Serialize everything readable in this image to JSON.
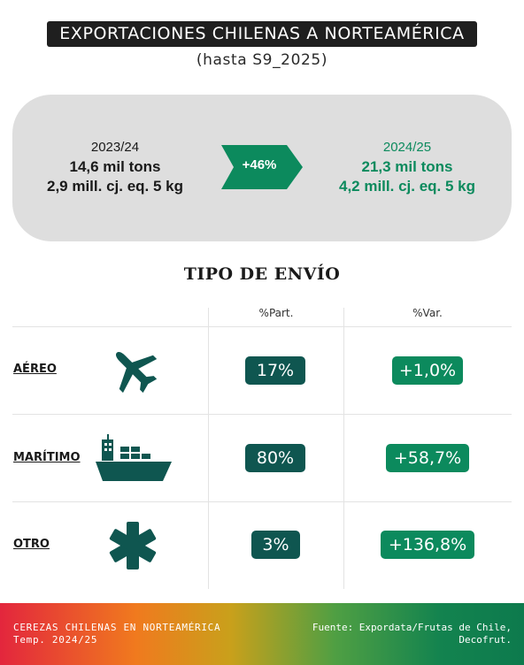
{
  "header": {
    "title": "EXPORTACIONES CHILENAS A NORTEAMÉRICA",
    "subtitle": "(hasta S9_2025)"
  },
  "summary": {
    "previous": {
      "season": "2023/24",
      "tons": "14,6 mil tons",
      "boxes": "2,9 mill. cj. eq. 5 kg"
    },
    "change": "+46%",
    "current": {
      "season": "2024/25",
      "tons": "21,3 mil tons",
      "boxes": "4,2 mill. cj. eq. 5 kg"
    }
  },
  "shipping": {
    "title": "TIPO DE ENVÍO",
    "columns": [
      "%Part.",
      "%Var."
    ],
    "rows": [
      {
        "label": "AÉREO",
        "icon": "airplane-icon",
        "part": "17%",
        "var": "+1,0%"
      },
      {
        "label": "MARÍTIMO",
        "icon": "ship-icon",
        "part": "80%",
        "var": "+58,7%"
      },
      {
        "label": "OTRO",
        "icon": "asterisk-icon",
        "part": "3%",
        "var": "+136,8%"
      }
    ]
  },
  "footer": {
    "line1": "CEREZAS CHILENAS EN NORTEAMÉRICA",
    "line2": "Temp. 2024/25",
    "source1": "Fuente: Expordata/Frutas de Chile,",
    "source2": "Decofrut."
  },
  "colors": {
    "dark_teal": "#0f5650",
    "green": "#0c8a5d",
    "panel_gray": "#dedede",
    "title_bg": "#1f1f1f"
  }
}
